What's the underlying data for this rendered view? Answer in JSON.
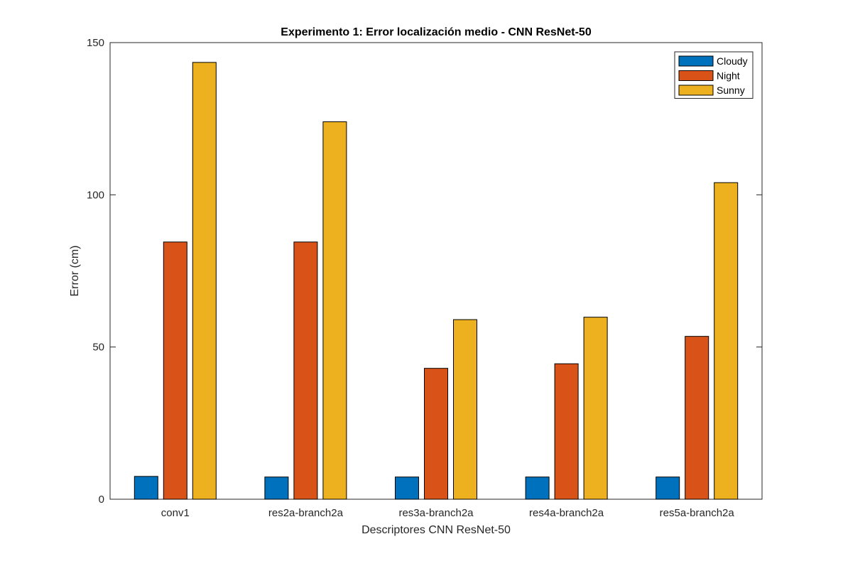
{
  "chart_data": {
    "type": "bar",
    "title": "Experimento 1: Error localización medio - CNN ResNet-50",
    "xlabel": "Descriptores CNN ResNet-50",
    "ylabel": "Error (cm)",
    "categories": [
      "conv1",
      "res2a-branch2a",
      "res3a-branch2a",
      "res4a-branch2a",
      "res5a-branch2a"
    ],
    "series": [
      {
        "name": "Cloudy",
        "color": "#0072BD",
        "values": [
          7.5,
          7.3,
          7.3,
          7.3,
          7.3
        ]
      },
      {
        "name": "Night",
        "color": "#D95319",
        "values": [
          84.5,
          84.5,
          43.0,
          44.5,
          53.5
        ]
      },
      {
        "name": "Sunny",
        "color": "#EDB120",
        "values": [
          143.5,
          124.0,
          59.0,
          59.8,
          104.0
        ]
      }
    ],
    "ylim": [
      0,
      150
    ],
    "yticks": [
      0,
      50,
      100,
      150
    ],
    "grid": false,
    "legend_position": "top-right"
  }
}
